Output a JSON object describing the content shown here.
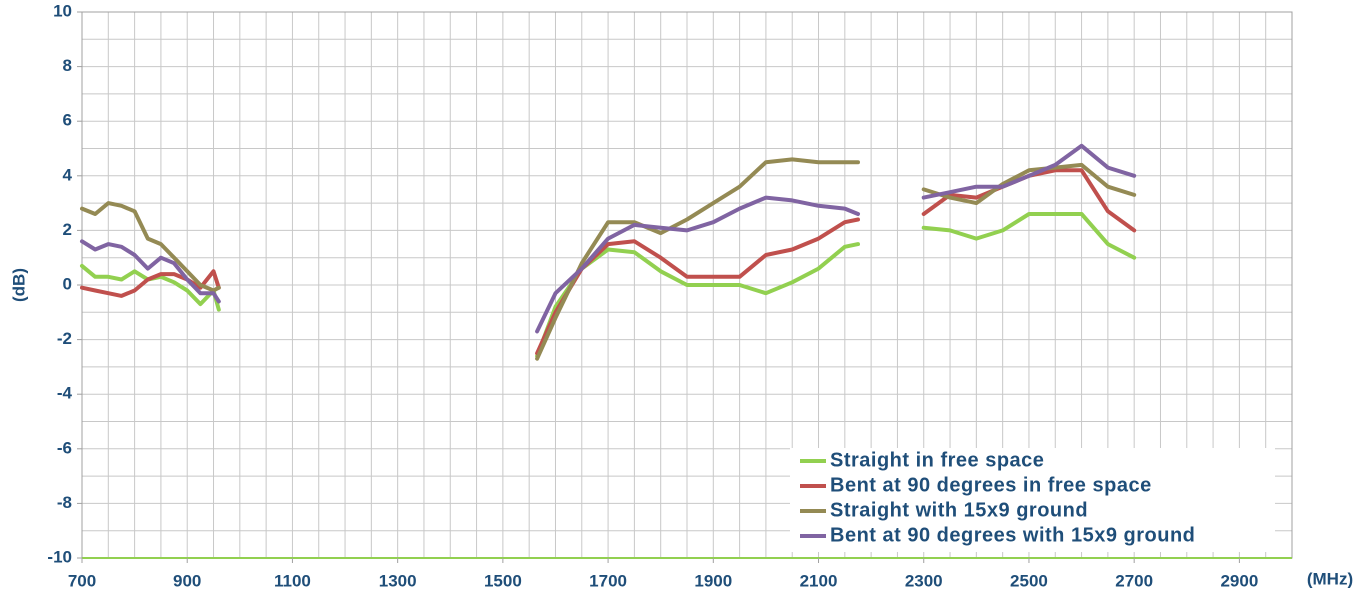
{
  "chart_data": {
    "type": "line",
    "x_label": "(MHz)",
    "y_label": "(dB)",
    "xlim": [
      700,
      3000
    ],
    "ylim": [
      -10,
      10
    ],
    "xticks": [
      700,
      900,
      1100,
      1300,
      1500,
      1700,
      1900,
      2100,
      2300,
      2500,
      2700,
      2900
    ],
    "yticks": [
      -10,
      -8,
      -6,
      -4,
      -2,
      0,
      2,
      4,
      6,
      8,
      10
    ],
    "grid": true,
    "x_grid_step": 50,
    "y_grid_step": 1,
    "legend": "lower right",
    "x": [
      700,
      725,
      750,
      775,
      800,
      825,
      850,
      875,
      900,
      925,
      950,
      960,
      1300,
      1565,
      1600,
      1650,
      1700,
      1750,
      1800,
      1850,
      1900,
      1950,
      2000,
      2050,
      2100,
      2150,
      2175,
      2240,
      2300,
      2350,
      2400,
      2450,
      2500,
      2550,
      2600,
      2650,
      2700
    ],
    "series": [
      {
        "name": "Straight in free space",
        "color": "#92d050",
        "values": [
          0.7,
          0.3,
          0.3,
          0.2,
          0.5,
          0.2,
          0.3,
          0.1,
          -0.2,
          -0.7,
          -0.2,
          -0.9,
          null,
          -2.6,
          -0.8,
          0.6,
          1.3,
          1.2,
          0.5,
          0.0,
          0.0,
          0.0,
          -0.3,
          0.1,
          0.6,
          1.4,
          1.5,
          null,
          2.1,
          2.0,
          1.7,
          2.0,
          2.6,
          2.6,
          2.6,
          1.5,
          1.0
        ]
      },
      {
        "name": "Bent at 90 degrees in free space",
        "color": "#c0504d",
        "values": [
          -0.1,
          -0.2,
          -0.3,
          -0.4,
          -0.2,
          0.2,
          0.4,
          0.4,
          0.2,
          -0.1,
          0.5,
          -0.1,
          null,
          -2.5,
          -1.0,
          0.6,
          1.5,
          1.6,
          1.0,
          0.3,
          0.3,
          0.3,
          1.1,
          1.3,
          1.7,
          2.3,
          2.4,
          null,
          2.6,
          3.3,
          3.2,
          3.6,
          4.0,
          4.2,
          4.2,
          2.7,
          2.0
        ]
      },
      {
        "name": "Straight with 15x9 ground",
        "color": "#948a54",
        "values": [
          2.8,
          2.6,
          3.0,
          2.9,
          2.7,
          1.7,
          1.5,
          1.0,
          0.5,
          0.0,
          -0.2,
          -0.1,
          null,
          -2.7,
          -1.2,
          0.8,
          2.3,
          2.3,
          1.9,
          2.4,
          3.0,
          3.6,
          4.5,
          4.6,
          4.5,
          4.5,
          4.5,
          null,
          3.5,
          3.2,
          3.0,
          3.7,
          4.2,
          4.3,
          4.4,
          3.6,
          3.3
        ]
      },
      {
        "name": "Bent at 90 degrees with 15x9 ground",
        "color": "#8064a2",
        "values": [
          1.6,
          1.3,
          1.5,
          1.4,
          1.1,
          0.6,
          1.0,
          0.8,
          0.2,
          -0.3,
          -0.3,
          -0.6,
          null,
          -1.7,
          -0.3,
          0.6,
          1.7,
          2.2,
          2.1,
          2.0,
          2.3,
          2.8,
          3.2,
          3.1,
          2.9,
          2.8,
          2.6,
          null,
          3.2,
          3.4,
          3.6,
          3.6,
          4.0,
          4.4,
          5.1,
          4.3,
          4.0
        ]
      }
    ]
  }
}
